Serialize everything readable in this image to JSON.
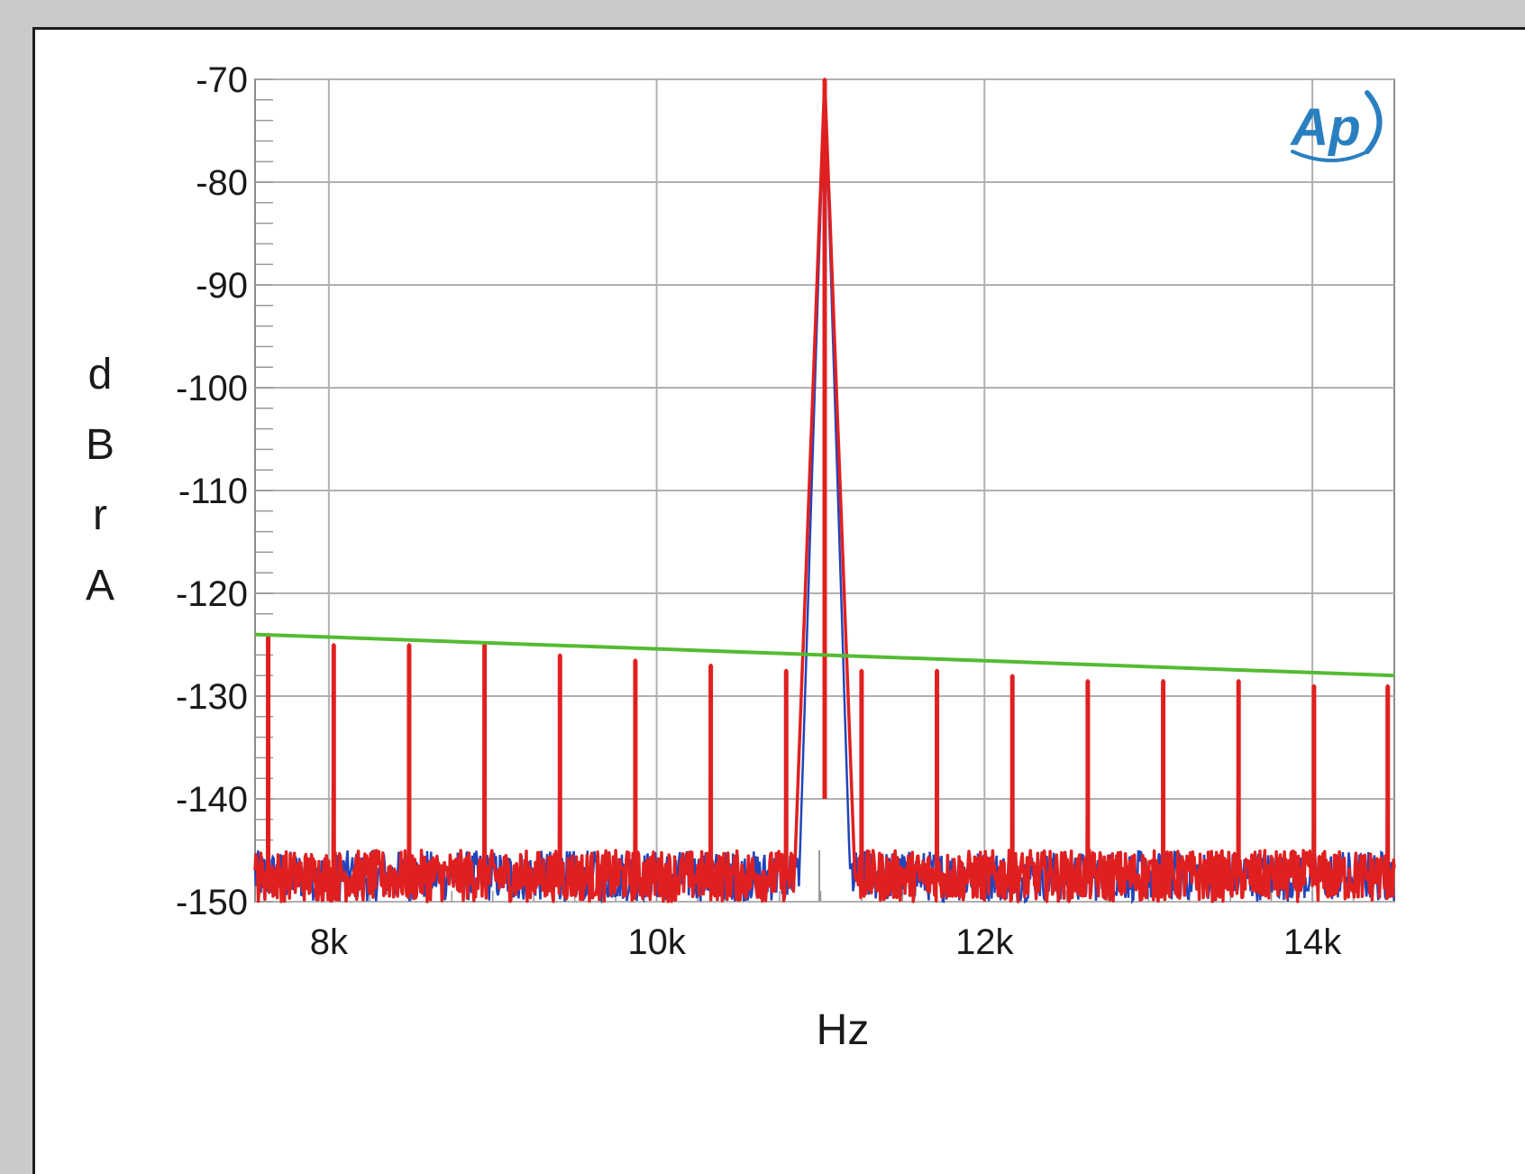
{
  "chart_data": {
    "type": "line",
    "title": "",
    "xlabel": "Hz",
    "ylabel": "dBrA",
    "xlim": [
      7550,
      14500
    ],
    "ylim": [
      -150,
      -70
    ],
    "x_ticks": [
      {
        "value": 8000,
        "label": "8k"
      },
      {
        "value": 10000,
        "label": "10k"
      },
      {
        "value": 12000,
        "label": "12k"
      },
      {
        "value": 14000,
        "label": "14k"
      }
    ],
    "y_ticks": [
      {
        "value": -70,
        "label": "-70"
      },
      {
        "value": -80,
        "label": "-80"
      },
      {
        "value": -90,
        "label": "-90"
      },
      {
        "value": -100,
        "label": "-100"
      },
      {
        "value": -110,
        "label": "-110"
      },
      {
        "value": -120,
        "label": "-120"
      },
      {
        "value": -130,
        "label": "-130"
      },
      {
        "value": -140,
        "label": "-140"
      },
      {
        "value": -150,
        "label": "-150"
      }
    ],
    "grid": true,
    "legend": "none",
    "series": [
      {
        "color": "#2244bb",
        "role": "noise floor (channel 2)",
        "noise_floor_db": -147.5,
        "points": [
          [
            7550,
            -147.5
          ],
          [
            10800,
            -147.2
          ],
          [
            10950,
            -140
          ],
          [
            11000,
            -70
          ],
          [
            11050,
            -140
          ],
          [
            11150,
            -146.5
          ],
          [
            14500,
            -147.5
          ]
        ]
      },
      {
        "color": "#e02020",
        "role": "spectrum (channel 1)",
        "noise_floor_db": -147.5,
        "fundamental": {
          "freq": 11025,
          "db": -70
        },
        "spurs": [
          {
            "freq": 7630,
            "db": -124
          },
          {
            "freq": 8030,
            "db": -125
          },
          {
            "freq": 8490,
            "db": -125
          },
          {
            "freq": 8950,
            "db": -125
          },
          {
            "freq": 9410,
            "db": -126
          },
          {
            "freq": 9870,
            "db": -126.5
          },
          {
            "freq": 10330,
            "db": -127
          },
          {
            "freq": 10790,
            "db": -127.5
          },
          {
            "freq": 11250,
            "db": -127.5
          },
          {
            "freq": 11710,
            "db": -127.5
          },
          {
            "freq": 12170,
            "db": -128
          },
          {
            "freq": 12630,
            "db": -128.5
          },
          {
            "freq": 13090,
            "db": -128.5
          },
          {
            "freq": 13550,
            "db": -128.5
          },
          {
            "freq": 14010,
            "db": -129
          },
          {
            "freq": 14460,
            "db": -129
          }
        ]
      },
      {
        "color": "#55bb33",
        "role": "threshold line",
        "points": [
          [
            7550,
            -124
          ],
          [
            14500,
            -128
          ]
        ]
      }
    ]
  },
  "colors": {
    "background": "#c9cacc",
    "plot_background": "#ffffff",
    "grid": "#b0b0b0",
    "logo": "#2a7fc0"
  },
  "logo": {
    "text": "Ap"
  }
}
